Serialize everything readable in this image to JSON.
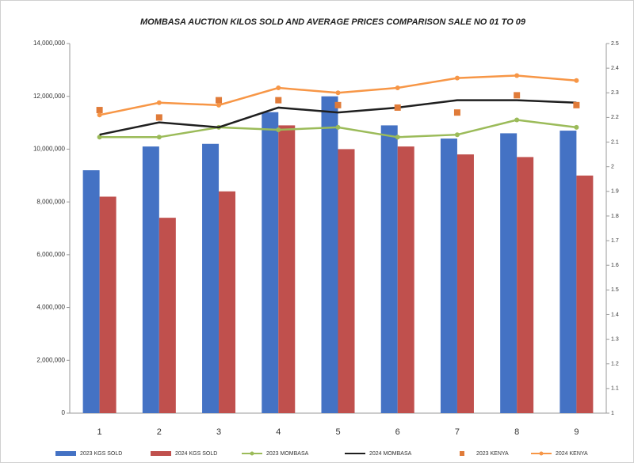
{
  "chart_data": {
    "type": "combo",
    "title": "MOMBASA AUCTION KILOS SOLD AND AVERAGE PRICES COMPARISON SALE NO  01 TO 09",
    "categories": [
      "1",
      "2",
      "3",
      "4",
      "5",
      "6",
      "7",
      "8",
      "9"
    ],
    "series": [
      {
        "name": "2023 KGS SOLD",
        "type": "bar",
        "color": "#4472c4",
        "values": [
          9200000,
          10100000,
          10200000,
          11400000,
          12000000,
          10900000,
          10400000,
          10600000,
          10700000
        ]
      },
      {
        "name": "2024 KGS SOLD",
        "type": "bar",
        "color": "#c0504d",
        "values": [
          8200000,
          7400000,
          8400000,
          10900000,
          10000000,
          10100000,
          9800000,
          9700000,
          9000000
        ]
      },
      {
        "name": "2023 MOMBASA",
        "type": "line",
        "axis": "y2",
        "markers": true,
        "color": "#9bbb59",
        "values": [
          2.12,
          2.12,
          2.16,
          2.15,
          2.16,
          2.12,
          2.13,
          2.19,
          2.16
        ]
      },
      {
        "name": "2024 MOMBASA",
        "type": "line",
        "axis": "y2",
        "markers": false,
        "color": "#1f1f1f",
        "values": [
          2.13,
          2.18,
          2.16,
          2.24,
          2.22,
          2.24,
          2.27,
          2.27,
          2.26
        ]
      },
      {
        "name": "2023 KENYA",
        "type": "scatter",
        "axis": "y2",
        "color": "#e07b39",
        "values": [
          2.23,
          2.2,
          2.27,
          2.27,
          2.25,
          2.24,
          2.22,
          2.29,
          2.25
        ]
      },
      {
        "name": "2024 KENYA",
        "type": "line",
        "axis": "y2",
        "markers": true,
        "color": "#f79646",
        "values": [
          2.21,
          2.26,
          2.25,
          2.32,
          2.3,
          2.32,
          2.36,
          2.37,
          2.35
        ]
      }
    ],
    "ylim": [
      0,
      14000000
    ],
    "yticks": [
      0,
      {
        "value": 2000000,
        "label": "2,000,000"
      },
      {
        "value": 4000000,
        "label": "4,000,000"
      },
      {
        "value": 6000000,
        "label": "6,000,000"
      },
      {
        "value": 8000000,
        "label": "8,000,000"
      },
      {
        "value": 10000000,
        "label": "10,000,000"
      },
      {
        "value": 12000000,
        "label": "12,000,000"
      },
      {
        "value": 14000000,
        "label": "14,000,000"
      }
    ],
    "y2lim": [
      1,
      2.5
    ],
    "y2ticks": [
      1,
      1.1,
      1.2,
      1.3,
      1.4,
      1.5,
      1.6,
      1.7,
      1.8,
      1.9,
      2,
      2.1,
      2.2,
      2.3,
      2.4,
      2.5
    ],
    "grid": false
  }
}
